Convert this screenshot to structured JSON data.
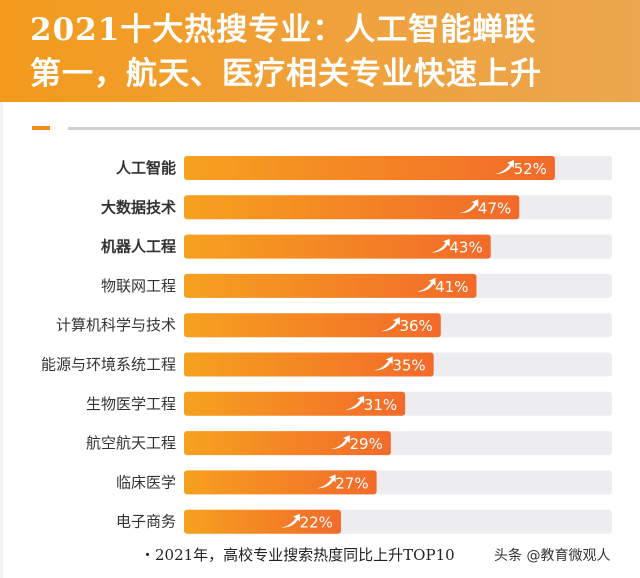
{
  "header": {
    "title": "2021十大热搜专业：人工智能蝉联\n第一，航天、医疗相关专业快速上升"
  },
  "colors": {
    "bar_start": "#f6a11f",
    "bar_end": "#f26a2a",
    "track": "#ededf0",
    "accent": "#f08a24"
  },
  "chart_data": {
    "type": "bar",
    "orientation": "horizontal",
    "title": "",
    "categories": [
      "人工智能",
      "大数据技术",
      "机器人工程",
      "物联网工程",
      "计算机科学与技术",
      "能源与环境系统工程",
      "生物医学工程",
      "航空航天工程",
      "临床医学",
      "电子商务"
    ],
    "bold_categories": [
      "人工智能",
      "大数据技术",
      "机器人工程"
    ],
    "values": [
      52,
      47,
      43,
      41,
      36,
      35,
      31,
      29,
      27,
      22
    ],
    "value_labels": [
      "52%",
      "47%",
      "43%",
      "41%",
      "36%",
      "35%",
      "31%",
      "29%",
      "27%",
      "22%"
    ],
    "label_icon": "trend-up-arrow-icon",
    "xlim": [
      0,
      60
    ],
    "grid": false
  },
  "footnote": "・2021年，高校专业搜索热度同比上升TOP10",
  "watermark": "头条 @教育微观人"
}
